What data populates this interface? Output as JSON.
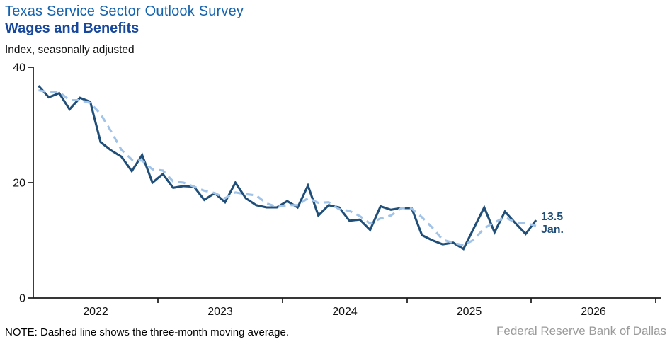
{
  "header": {
    "title": "Texas Service Sector Outlook Survey",
    "subtitle": "Wages and Benefits",
    "units_label": "Index, seasonally adjusted"
  },
  "chart_data": {
    "type": "line",
    "frequency": "monthly",
    "title": "Wages and Benefits",
    "ylabel": "Index, seasonally adjusted",
    "ylim": [
      0,
      40
    ],
    "y_ticks": [
      0,
      20,
      40
    ],
    "x_tick_years": [
      "2022",
      "2023",
      "2024",
      "2025",
      "2026"
    ],
    "grid": "off",
    "legend": "none",
    "months": [
      "2022-01",
      "2022-02",
      "2022-03",
      "2022-04",
      "2022-05",
      "2022-06",
      "2022-07",
      "2022-08",
      "2022-09",
      "2022-10",
      "2022-11",
      "2022-12",
      "2023-01",
      "2023-02",
      "2023-03",
      "2023-04",
      "2023-05",
      "2023-06",
      "2023-07",
      "2023-08",
      "2023-09",
      "2023-10",
      "2023-11",
      "2023-12",
      "2024-01",
      "2024-02",
      "2024-03",
      "2024-04",
      "2024-05",
      "2024-06",
      "2024-07",
      "2024-08",
      "2024-09",
      "2024-10",
      "2024-11",
      "2024-12",
      "2025-01",
      "2025-02",
      "2025-03",
      "2025-04",
      "2025-05",
      "2025-06",
      "2025-07",
      "2025-08",
      "2025-09",
      "2025-10",
      "2025-11",
      "2025-12",
      "2026-01"
    ],
    "series": [
      {
        "name": "Wages and benefits index",
        "style": "solid",
        "color": "#1f4e79",
        "values": [
          36.8,
          34.8,
          35.5,
          32.7,
          34.7,
          34.0,
          27.0,
          25.6,
          24.5,
          22.0,
          24.8,
          20.0,
          21.5,
          19.1,
          19.4,
          19.3,
          17.0,
          18.2,
          16.6,
          20.0,
          17.3,
          16.1,
          15.7,
          15.7,
          16.8,
          15.7,
          19.5,
          14.3,
          16.1,
          15.7,
          13.4,
          13.6,
          11.8,
          15.9,
          15.3,
          15.6,
          15.6,
          10.9,
          10.0,
          9.3,
          9.6,
          8.5,
          12.1,
          15.7,
          11.4,
          15.0,
          13.0,
          11.1,
          13.5
        ]
      },
      {
        "name": "Three-month moving average",
        "style": "dashed",
        "color": "#a2c3e8",
        "values": [
          36.0,
          35.7,
          35.7,
          34.3,
          34.3,
          33.8,
          31.9,
          28.9,
          25.7,
          24.0,
          23.8,
          22.3,
          22.1,
          20.2,
          20.0,
          19.3,
          18.6,
          18.2,
          17.3,
          18.3,
          18.0,
          17.8,
          16.4,
          15.8,
          16.1,
          16.1,
          17.3,
          16.5,
          16.6,
          15.4,
          15.1,
          14.2,
          12.9,
          13.8,
          14.3,
          15.6,
          15.5,
          14.0,
          12.2,
          10.1,
          9.6,
          9.1,
          10.1,
          12.1,
          13.1,
          14.0,
          13.1,
          13.0,
          12.5
        ]
      }
    ],
    "annotation": {
      "value": "13.5",
      "month": "Jan."
    }
  },
  "note": "NOTE: Dashed line shows the three-month  moving average.",
  "footer": "Federal Reserve Bank of Dallas",
  "colors": {
    "title": "#1563ae",
    "subtitle": "#17489e",
    "solid_line": "#1f4e79",
    "dashed_line": "#a2c3e8",
    "annotation": "#1f4e79",
    "axis": "#1a1a1a",
    "footer": "#9a9a9a"
  }
}
